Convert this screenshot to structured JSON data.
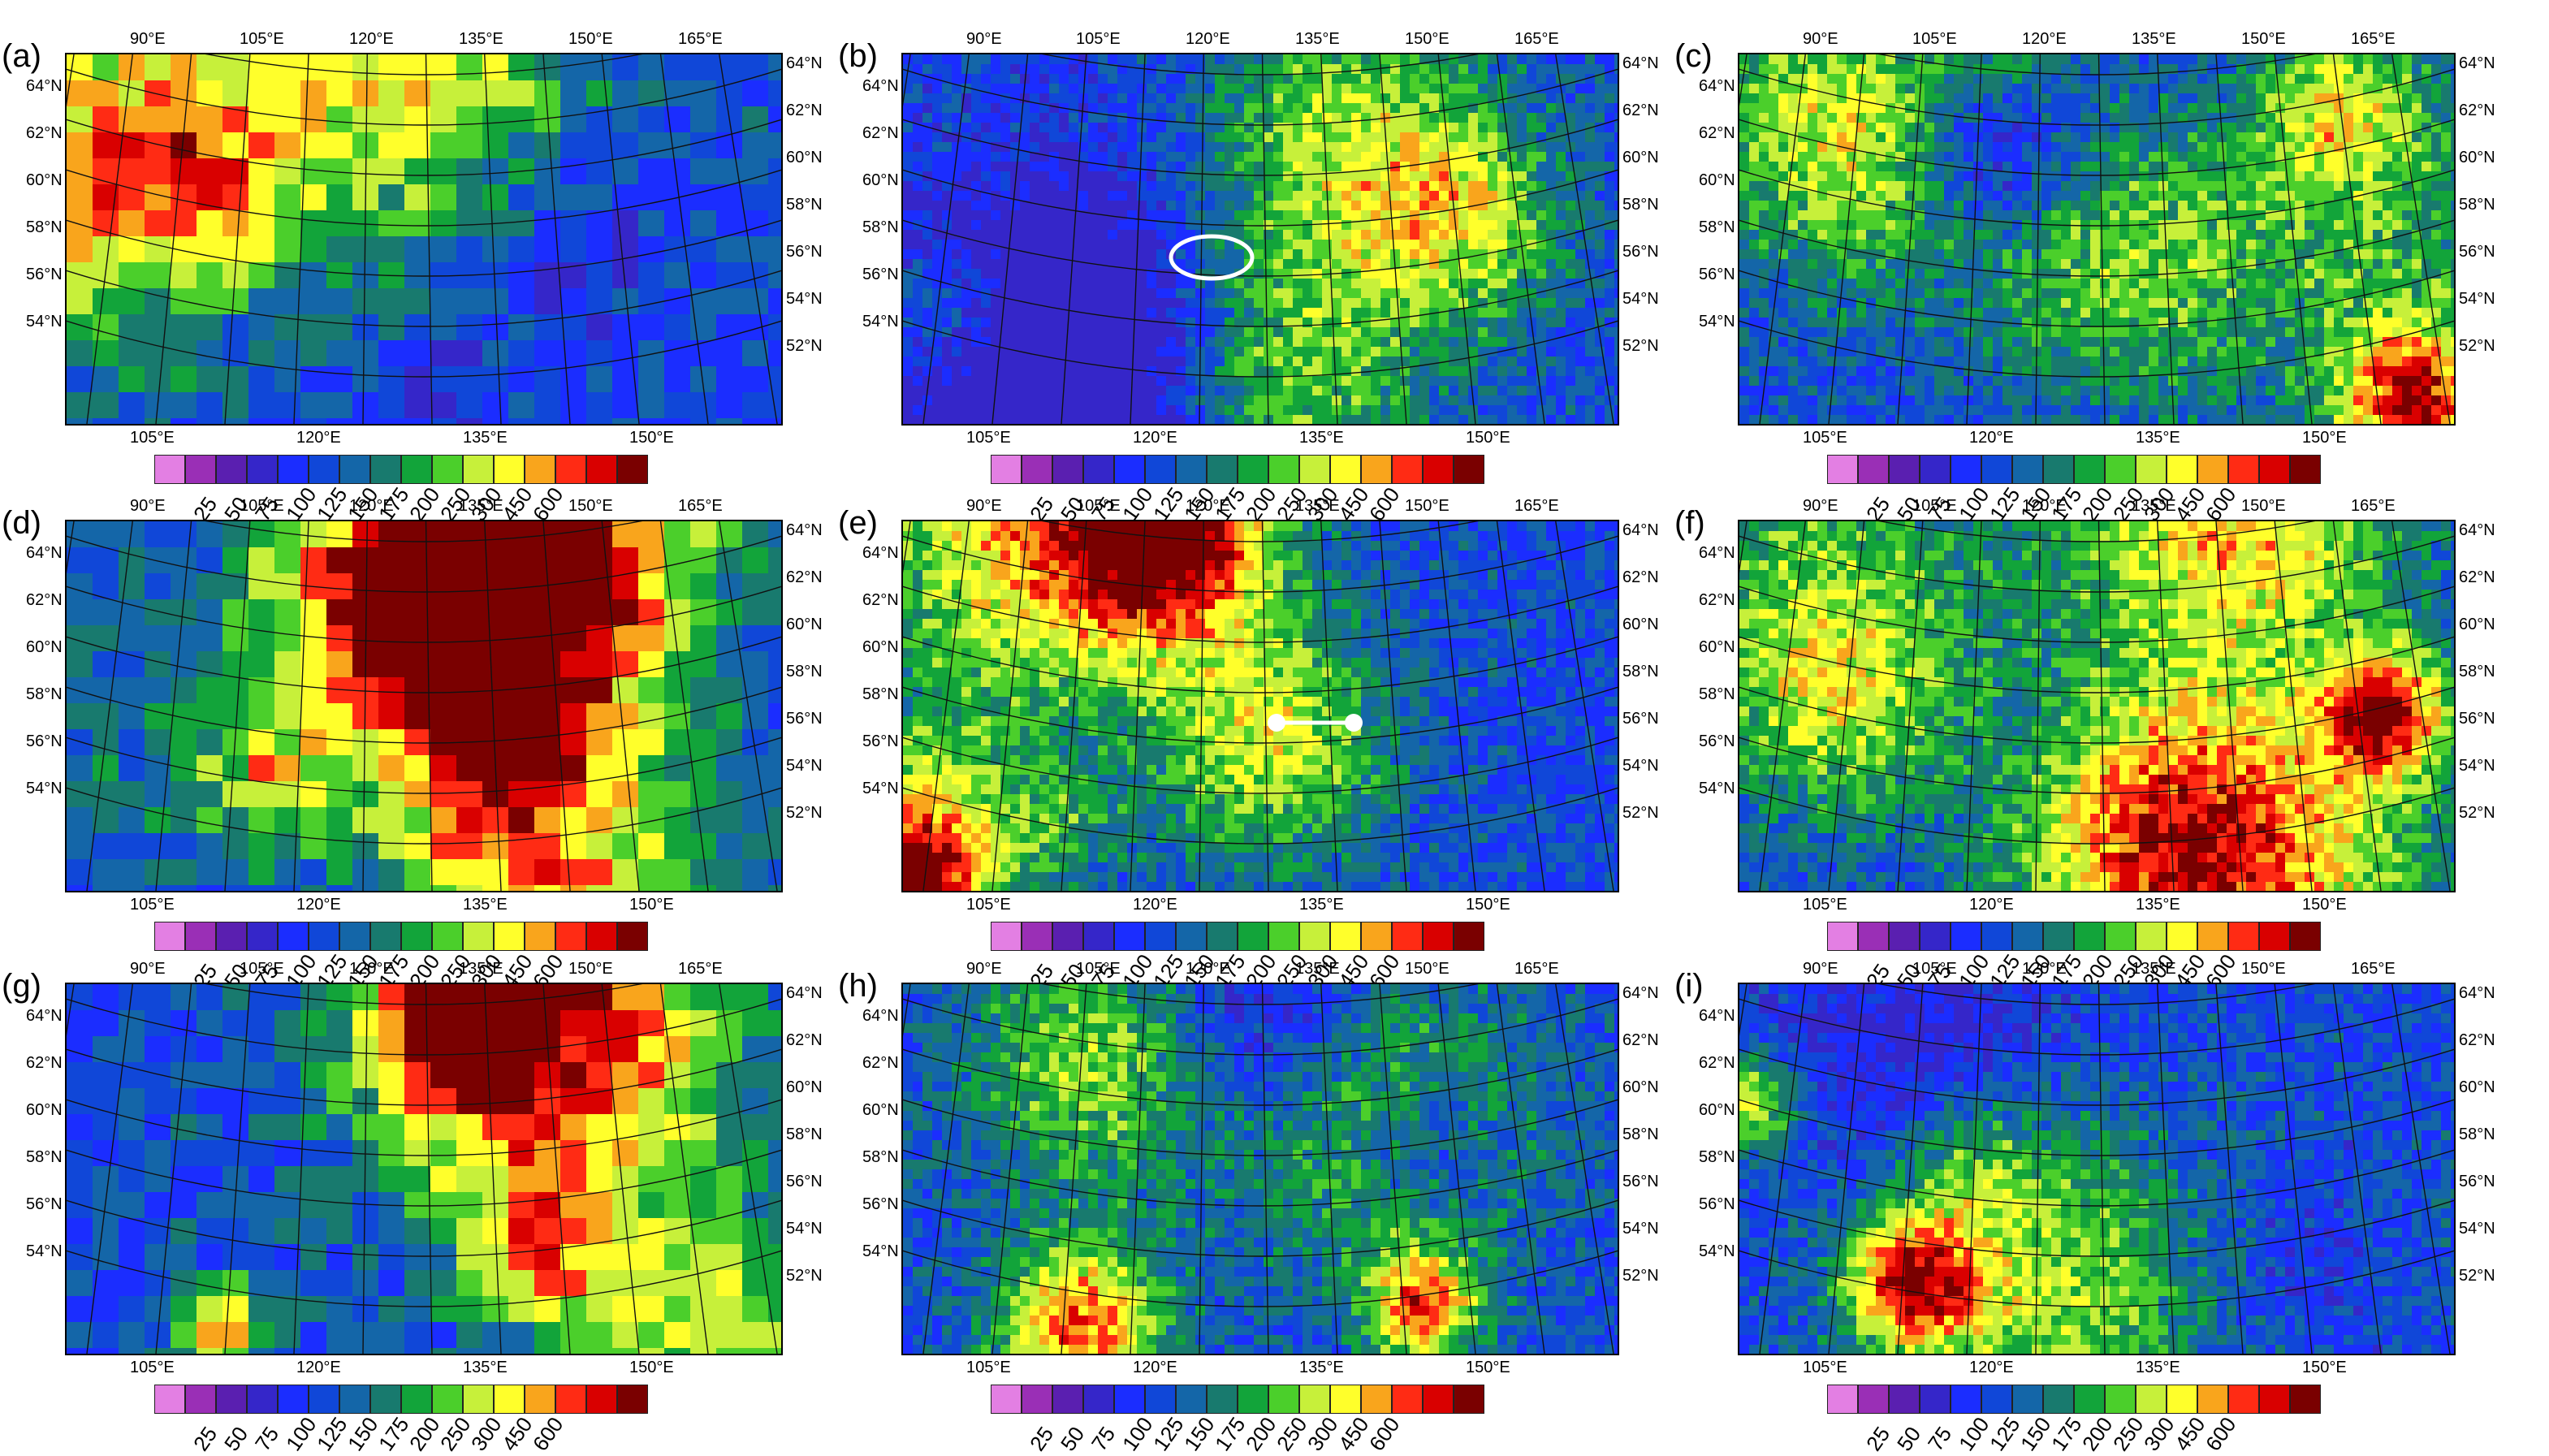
{
  "colorbar": {
    "colors": [
      "#e37fe3",
      "#9a2fb6",
      "#5a1fb0",
      "#3526c9",
      "#1b2dff",
      "#1047d8",
      "#1466a8",
      "#187a6e",
      "#12a43a",
      "#4bcf2b",
      "#c7f03a",
      "#ffff2b",
      "#f9a51c",
      "#ff2b14",
      "#d90000",
      "#7a0000"
    ],
    "labels": [
      "25",
      "50",
      "75",
      "100",
      "125",
      "150",
      "175",
      "200",
      "250",
      "300",
      "450",
      "600"
    ]
  },
  "grids": {
    "top_lon_labels": [
      "90°E",
      "105°E",
      "120°E",
      "135°E",
      "150°E",
      "165°E"
    ],
    "bottom_lon_labels": [
      "105°E",
      "120°E",
      "135°E",
      "150°E"
    ],
    "lat_labels": [
      "64°N",
      "62°N",
      "60°N",
      "58°N",
      "56°N",
      "54°N",
      "52°N"
    ]
  },
  "panels": [
    {
      "label": "(a)",
      "type": "coarse"
    },
    {
      "label": "(b)",
      "type": "fine",
      "marker": "ellipse"
    },
    {
      "label": "(c)",
      "type": "fine"
    },
    {
      "label": "(d)",
      "type": "coarse"
    },
    {
      "label": "(e)",
      "type": "fine",
      "marker": "line"
    },
    {
      "label": "(f)",
      "type": "fine"
    },
    {
      "label": "(g)",
      "type": "coarse"
    },
    {
      "label": "(h)",
      "type": "fine"
    },
    {
      "label": "(i)",
      "type": "fine"
    }
  ]
}
